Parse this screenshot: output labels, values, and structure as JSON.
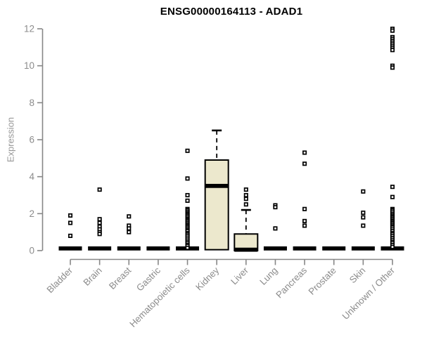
{
  "title": "ENSG00000164113 - ADAD1",
  "chart_data": {
    "type": "box",
    "title": "ENSG00000164113 - ADAD1",
    "ylabel": "Expression",
    "xlabel": "",
    "ylim": [
      0,
      12
    ],
    "yticks": [
      0,
      2,
      4,
      6,
      8,
      10,
      12
    ],
    "grid": false,
    "legend": false,
    "box_fill_color": "#ece8cd",
    "box_line_color": "#000000",
    "axis_color": "#878787",
    "tick_label_color": "#8c8c8c",
    "categories": [
      "Bladder",
      "Brain",
      "Breast",
      "Gastric",
      "Hematopoietic cells",
      "Kidney",
      "Liver",
      "Lung",
      "Pancreas",
      "Prostate",
      "Skin",
      "Unknown / Other"
    ],
    "boxes": [
      {
        "category": "Bladder",
        "q1": 0,
        "median": 0,
        "q3": 0,
        "whisker_low": 0,
        "whisker_high": 0,
        "outliers": [
          1.9,
          1.5,
          0.8
        ]
      },
      {
        "category": "Brain",
        "q1": 0,
        "median": 0,
        "q3": 0,
        "whisker_low": 0,
        "whisker_high": 0,
        "outliers": [
          3.3,
          1.7,
          1.5,
          1.3,
          1.15,
          1.0,
          0.9
        ]
      },
      {
        "category": "Breast",
        "q1": 0,
        "median": 0,
        "q3": 0,
        "whisker_low": 0,
        "whisker_high": 0,
        "outliers": [
          1.85,
          1.35,
          1.2,
          1.0
        ]
      },
      {
        "category": "Gastric",
        "q1": 0,
        "median": 0,
        "q3": 0,
        "whisker_low": 0,
        "whisker_high": 0,
        "outliers": []
      },
      {
        "category": "Hematopoietic cells",
        "q1": 0,
        "median": 0,
        "q3": 0,
        "whisker_low": 0,
        "whisker_high": 0,
        "outliers": [
          5.4,
          3.9,
          3.0,
          2.7,
          2.25,
          2.18,
          2.1,
          2.02,
          1.95,
          1.88,
          1.8,
          1.72,
          1.65,
          1.58,
          1.5,
          1.42,
          1.35,
          1.28,
          1.2,
          1.12,
          1.05,
          0.95,
          0.88,
          0.8,
          0.7,
          0.6,
          0.5,
          0.42,
          0.32,
          0.25,
          0.15
        ]
      },
      {
        "category": "Kidney",
        "q1": 0.05,
        "median": 3.5,
        "q3": 4.9,
        "whisker_low": 0,
        "whisker_high": 6.5,
        "outliers": []
      },
      {
        "category": "Liver",
        "q1": 0,
        "median": 0.05,
        "q3": 0.9,
        "whisker_low": 0,
        "whisker_high": 2.2,
        "outliers": [
          3.3,
          3.0,
          2.8,
          2.5
        ]
      },
      {
        "category": "Lung",
        "q1": 0,
        "median": 0,
        "q3": 0,
        "whisker_low": 0,
        "whisker_high": 0,
        "outliers": [
          2.45,
          2.35,
          1.2
        ]
      },
      {
        "category": "Pancreas",
        "q1": 0,
        "median": 0,
        "q3": 0,
        "whisker_low": 0,
        "whisker_high": 0,
        "outliers": [
          5.3,
          4.7,
          2.25,
          1.6,
          1.35
        ]
      },
      {
        "category": "Prostate",
        "q1": 0,
        "median": 0,
        "q3": 0,
        "whisker_low": 0,
        "whisker_high": 0,
        "outliers": []
      },
      {
        "category": "Skin",
        "q1": 0,
        "median": 0,
        "q3": 0,
        "whisker_low": 0,
        "whisker_high": 0,
        "outliers": [
          3.2,
          2.05,
          1.8,
          1.35
        ]
      },
      {
        "category": "Unknown / Other",
        "q1": 0,
        "median": 0,
        "q3": 0,
        "whisker_low": 0,
        "whisker_high": 0,
        "outliers": [
          12.0,
          11.9,
          11.55,
          11.45,
          11.35,
          11.25,
          11.15,
          11.05,
          10.95,
          10.85,
          10.0,
          9.9,
          3.45,
          2.9,
          2.25,
          2.18,
          2.1,
          2.0,
          1.92,
          1.85,
          1.78,
          1.7,
          1.62,
          1.55,
          1.48,
          1.4,
          1.32,
          1.25,
          1.15,
          1.05,
          0.95,
          0.88,
          0.78,
          0.68,
          0.58,
          0.48,
          0.4,
          0.3,
          0.2
        ]
      }
    ]
  }
}
